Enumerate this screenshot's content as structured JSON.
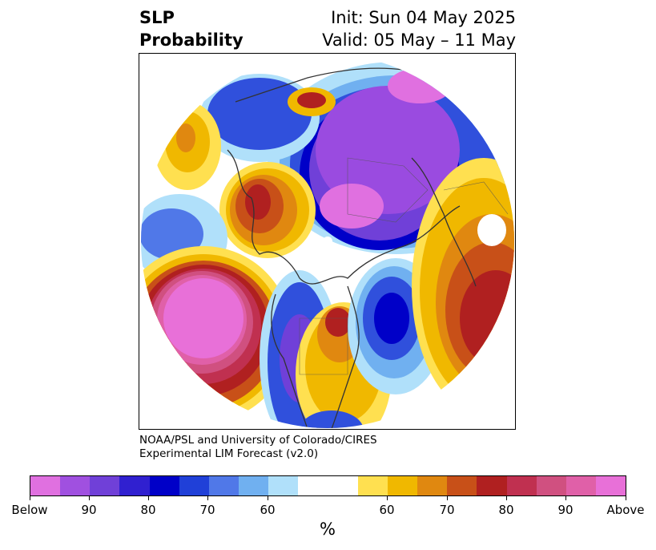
{
  "title": {
    "left_line1": "SLP",
    "left_line2": "Probability",
    "right_line1": "Init: Sun 04 May 2025",
    "right_line2": "Valid: 05 May – 11 May"
  },
  "credit": {
    "line1": "NOAA/PSL and University of Colorado/CIRES",
    "line2": "Experimental LIM Forecast (v2.0)"
  },
  "colorbar": {
    "unit": "%",
    "colors": [
      "#e070e0",
      "#a050e0",
      "#7040d8",
      "#3020d0",
      "#0000c8",
      "#2040d8",
      "#5078e8",
      "#70b0f0",
      "#b0e0fa",
      "#ffffff",
      "#ffffff",
      "#ffe050",
      "#f0b800",
      "#e08810",
      "#c85018",
      "#b02020",
      "#c03050",
      "#d05080",
      "#e060a8",
      "#e870d8"
    ],
    "tick_labels": [
      "Below",
      "90",
      "80",
      "70",
      "60",
      "60",
      "70",
      "80",
      "90",
      "Above"
    ]
  },
  "map": {
    "projection": "polar stereographic, North Pole",
    "palette": {
      "deep_below": "#e070e0",
      "purple": "#9a4be0",
      "blue_dark": "#0000c8",
      "blue": "#3050dc",
      "blue_light": "#70b0f0",
      "blue_pale": "#b0e0fa",
      "yellow": "#ffe050",
      "gold": "#f0b800",
      "orange": "#e08810",
      "brown": "#c85018",
      "red": "#b02020",
      "pink": "#d05080",
      "magenta": "#e878d8"
    }
  }
}
